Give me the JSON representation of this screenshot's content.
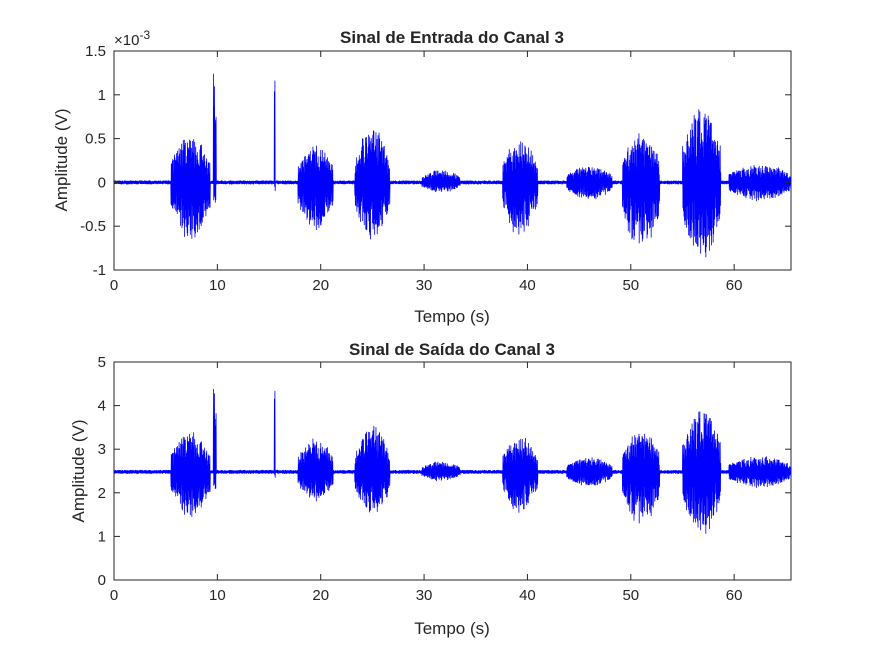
{
  "chart_data": [
    {
      "type": "line",
      "title": "Sinal de Entrada do Canal 3",
      "xlabel": "Tempo (s)",
      "ylabel": "Amplitude (V)",
      "y_exponent_prefix": "×10",
      "y_exponent_power": "-3",
      "xlim": [
        0,
        65.5
      ],
      "ylim": [
        -1,
        1.5
      ],
      "xticks": [
        0,
        10,
        20,
        30,
        40,
        50,
        60
      ],
      "xtick_labels": [
        "0",
        "10",
        "20",
        "30",
        "40",
        "50",
        "60"
      ],
      "yticks": [
        -1,
        -0.5,
        0,
        0.5,
        1,
        1.5
      ],
      "ytick_labels": [
        "-1",
        "-0.5",
        "0",
        "0.5",
        "1",
        "1.5"
      ],
      "baseline": 0,
      "noise_level": 0.02,
      "grid": false,
      "color": "#0000ff",
      "bursts": [
        {
          "t0": 5.5,
          "t1": 9.3,
          "amp_pos": 0.55,
          "amp_neg": 0.68
        },
        {
          "t0": 9.6,
          "t1": 9.9,
          "amp_pos": 1.27,
          "amp_neg": 0.3
        },
        {
          "t0": 15.5,
          "t1": 15.6,
          "amp_pos": 1.27,
          "amp_neg": 0.1
        },
        {
          "t0": 17.8,
          "t1": 21.2,
          "amp_pos": 0.45,
          "amp_neg": 0.58
        },
        {
          "t0": 23.3,
          "t1": 26.7,
          "amp_pos": 0.65,
          "amp_neg": 0.68
        },
        {
          "t0": 29.8,
          "t1": 33.5,
          "amp_pos": 0.15,
          "amp_neg": 0.12
        },
        {
          "t0": 37.6,
          "t1": 41.0,
          "amp_pos": 0.5,
          "amp_neg": 0.65
        },
        {
          "t0": 43.8,
          "t1": 48.2,
          "amp_pos": 0.2,
          "amp_neg": 0.2
        },
        {
          "t0": 49.2,
          "t1": 52.8,
          "amp_pos": 0.58,
          "amp_neg": 0.82
        },
        {
          "t0": 55.0,
          "t1": 58.7,
          "amp_pos": 0.92,
          "amp_neg": 0.92
        },
        {
          "t0": 59.5,
          "t1": 65.5,
          "amp_pos": 0.22,
          "amp_neg": 0.22
        }
      ]
    },
    {
      "type": "line",
      "title": "Sinal de Saída do Canal 3",
      "xlabel": "Tempo (s)",
      "ylabel": "Amplitude (V)",
      "xlim": [
        0,
        65.5
      ],
      "ylim": [
        0,
        5
      ],
      "xticks": [
        0,
        10,
        20,
        30,
        40,
        50,
        60
      ],
      "xtick_labels": [
        "0",
        "10",
        "20",
        "30",
        "40",
        "50",
        "60"
      ],
      "yticks": [
        0,
        1,
        2,
        3,
        4,
        5
      ],
      "ytick_labels": [
        "0",
        "1",
        "2",
        "3",
        "4",
        "5"
      ],
      "baseline": 2.48,
      "noise_level": 0.04,
      "grid": false,
      "color": "#0000ff",
      "bursts": [
        {
          "t0": 5.5,
          "t1": 9.3,
          "amp_pos": 0.95,
          "amp_neg": 1.05
        },
        {
          "t0": 9.6,
          "t1": 9.9,
          "amp_pos": 2.15,
          "amp_neg": 0.5
        },
        {
          "t0": 15.5,
          "t1": 15.6,
          "amp_pos": 2.15,
          "amp_neg": 0.15
        },
        {
          "t0": 17.8,
          "t1": 21.2,
          "amp_pos": 0.8,
          "amp_neg": 0.7
        },
        {
          "t0": 23.3,
          "t1": 26.7,
          "amp_pos": 1.1,
          "amp_neg": 1.0
        },
        {
          "t0": 29.8,
          "t1": 33.5,
          "amp_pos": 0.25,
          "amp_neg": 0.22
        },
        {
          "t0": 37.6,
          "t1": 41.0,
          "amp_pos": 0.85,
          "amp_neg": 1.0
        },
        {
          "t0": 43.8,
          "t1": 48.2,
          "amp_pos": 0.35,
          "amp_neg": 0.35
        },
        {
          "t0": 49.2,
          "t1": 52.8,
          "amp_pos": 1.0,
          "amp_neg": 1.3
        },
        {
          "t0": 55.0,
          "t1": 58.7,
          "amp_pos": 1.55,
          "amp_neg": 1.5
        },
        {
          "t0": 59.5,
          "t1": 65.5,
          "amp_pos": 0.38,
          "amp_neg": 0.38
        }
      ]
    }
  ]
}
